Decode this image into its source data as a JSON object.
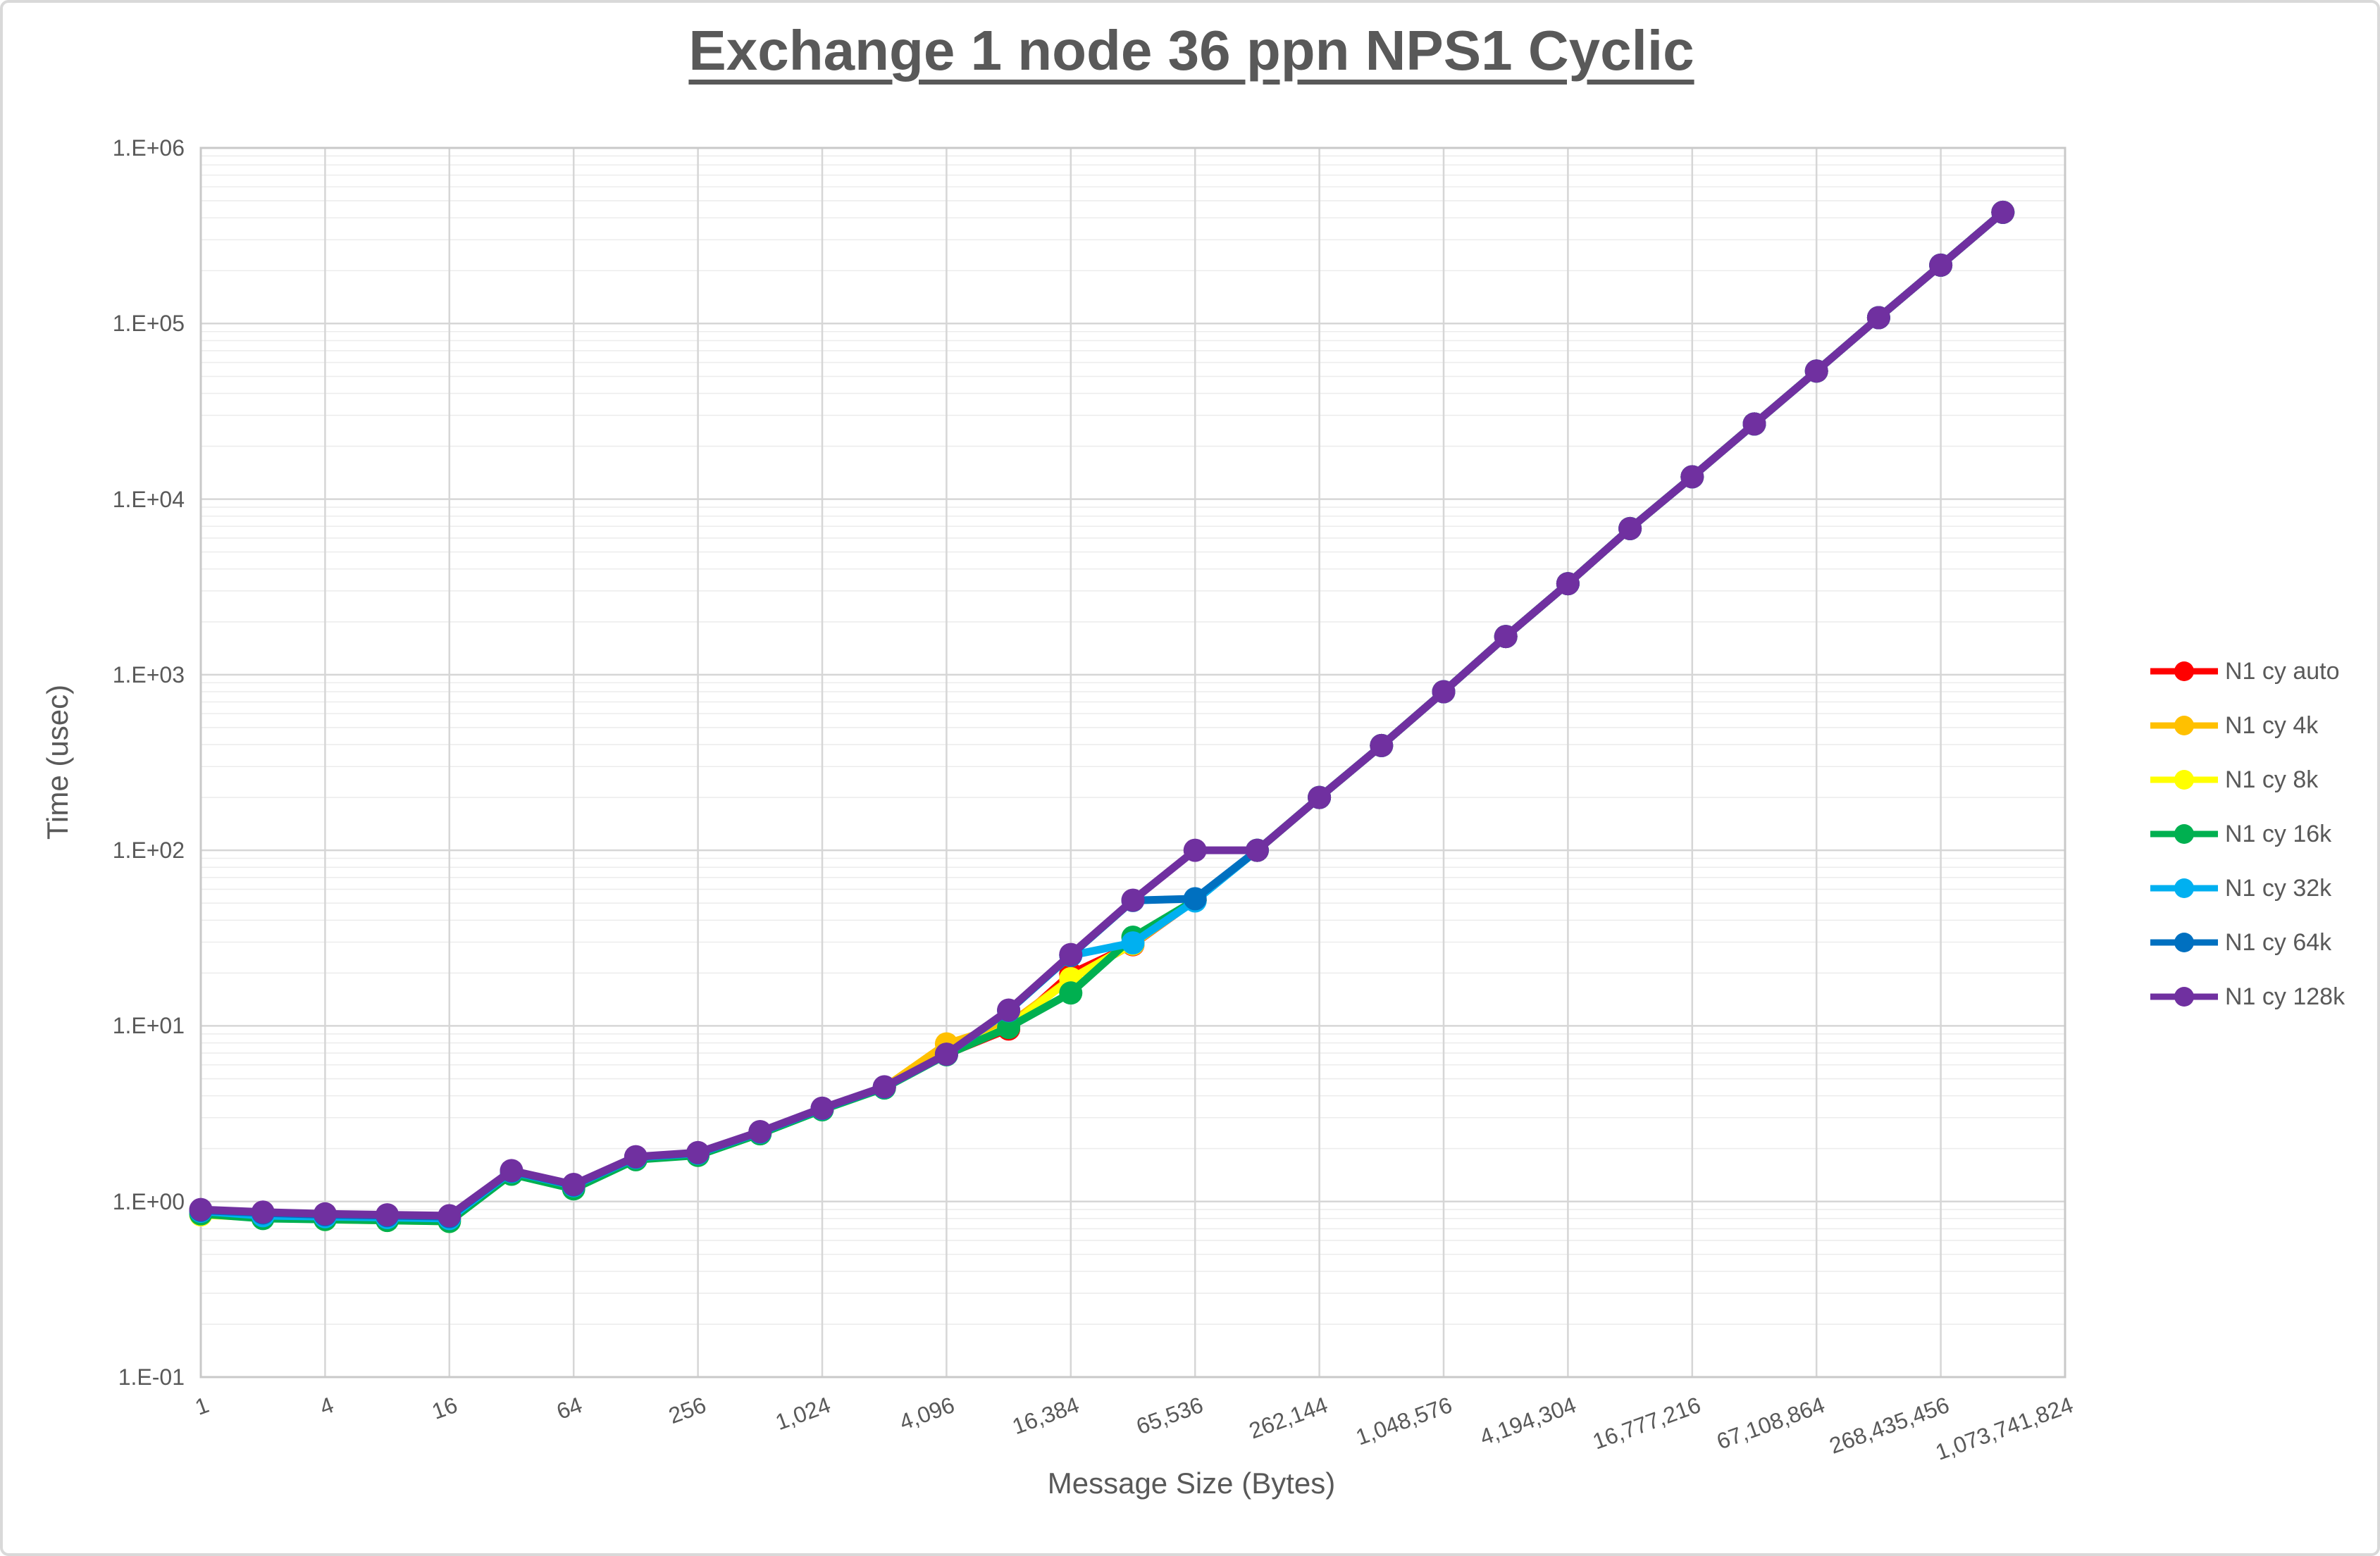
{
  "chart_data": {
    "type": "line",
    "title": "Exchange 1 node 36 ppn NPS1 Cyclic",
    "xlabel": "Message Size (Bytes)",
    "ylabel": "Time (usec)",
    "x_scale": "log2",
    "y_scale": "log10",
    "xlim": [
      1,
      1073741824
    ],
    "ylim": [
      0.1,
      1000000
    ],
    "grid": "horizontal major+minor, vertical major every power of 4",
    "legend_position": "right",
    "x_tick_labels": [
      "1",
      "4",
      "16",
      "64",
      "256",
      "1,024",
      "4,096",
      "16,384",
      "65,536",
      "262,144",
      "1,048,576",
      "4,194,304",
      "16,777,216",
      "67,108,864",
      "268,435,456",
      "1,073,741,824"
    ],
    "y_tick_labels": [
      "1.E+06",
      "1.E+05",
      "1.E+04",
      "1.E+03",
      "1.E+02",
      "1.E+01",
      "1.E+00",
      "1.E-01"
    ],
    "message_sizes": [
      1,
      2,
      4,
      8,
      16,
      32,
      64,
      128,
      256,
      512,
      1024,
      2048,
      4096,
      8192,
      16384,
      32768,
      65536,
      131072,
      262144,
      524288,
      1048576,
      2097152,
      4194304,
      8388608,
      16777216,
      33554432,
      67108864,
      134217728,
      268435456,
      536870912
    ],
    "series": [
      {
        "name": "N1 cy auto",
        "color": "#FF0000",
        "values": [
          0.87,
          0.84,
          0.82,
          0.81,
          0.8,
          1.47,
          1.22,
          1.77,
          1.87,
          2.47,
          3.37,
          4.47,
          6.9,
          9.6,
          19.8,
          29.0,
          52,
          100,
          200,
          395,
          800,
          1650,
          3300,
          6800,
          13400,
          26800,
          53600,
          108000,
          215000,
          430000
        ]
      },
      {
        "name": "N1 cy 4k",
        "color": "#FFC000",
        "values": [
          0.86,
          0.83,
          0.81,
          0.8,
          0.79,
          1.46,
          1.21,
          1.76,
          1.86,
          2.46,
          3.36,
          4.46,
          7.9,
          10.2,
          18.6,
          29.2,
          52,
          100,
          200,
          395,
          800,
          1650,
          3300,
          6800,
          13400,
          26800,
          53600,
          108000,
          215000,
          430000
        ]
      },
      {
        "name": "N1 cy 8k",
        "color": "#FFFF00",
        "values": [
          0.84,
          0.81,
          0.79,
          0.78,
          0.77,
          1.44,
          1.19,
          1.74,
          1.84,
          2.44,
          3.34,
          4.44,
          6.86,
          9.9,
          18.5,
          29.5,
          52,
          100,
          200,
          395,
          800,
          1650,
          3300,
          6800,
          13400,
          26800,
          53600,
          108000,
          215000,
          430000
        ]
      },
      {
        "name": "N1 cy 16k",
        "color": "#00B050",
        "values": [
          0.85,
          0.8,
          0.79,
          0.78,
          0.77,
          1.43,
          1.18,
          1.73,
          1.83,
          2.43,
          3.33,
          4.43,
          6.85,
          9.8,
          15.4,
          32.0,
          52,
          100,
          200,
          395,
          800,
          1650,
          3300,
          6800,
          13400,
          26800,
          53600,
          108000,
          215000,
          430000
        ]
      },
      {
        "name": "N1 cy 32k",
        "color": "#00B0F0",
        "values": [
          0.88,
          0.83,
          0.82,
          0.81,
          0.8,
          1.48,
          1.23,
          1.78,
          1.88,
          2.48,
          3.38,
          4.48,
          6.88,
          12.2,
          25.2,
          29.7,
          51.5,
          100,
          200,
          395,
          800,
          1650,
          3300,
          6800,
          13400,
          26800,
          53600,
          108000,
          215000,
          430000
        ]
      },
      {
        "name": "N1 cy 64k",
        "color": "#0070C0",
        "values": [
          0.89,
          0.86,
          0.84,
          0.83,
          0.82,
          1.49,
          1.24,
          1.79,
          1.89,
          2.49,
          3.39,
          4.49,
          6.89,
          12.25,
          25.3,
          51.8,
          53,
          100,
          200,
          395,
          800,
          1650,
          3300,
          6800,
          13400,
          26800,
          53600,
          108000,
          215000,
          430000
        ]
      },
      {
        "name": "N1 cy 128k",
        "color": "#7030A0",
        "values": [
          0.9,
          0.87,
          0.85,
          0.84,
          0.83,
          1.5,
          1.25,
          1.8,
          1.9,
          2.5,
          3.4,
          4.5,
          6.9,
          12.3,
          25.5,
          52,
          100,
          100,
          200,
          395,
          800,
          1650,
          3300,
          6800,
          13400,
          26800,
          53600,
          108000,
          215000,
          430000
        ]
      }
    ],
    "colors": {
      "text": "#595959",
      "grid_major": "#D6D6D6",
      "grid_minor": "#ECECEC",
      "plot_border": "#C9C9C9"
    }
  }
}
